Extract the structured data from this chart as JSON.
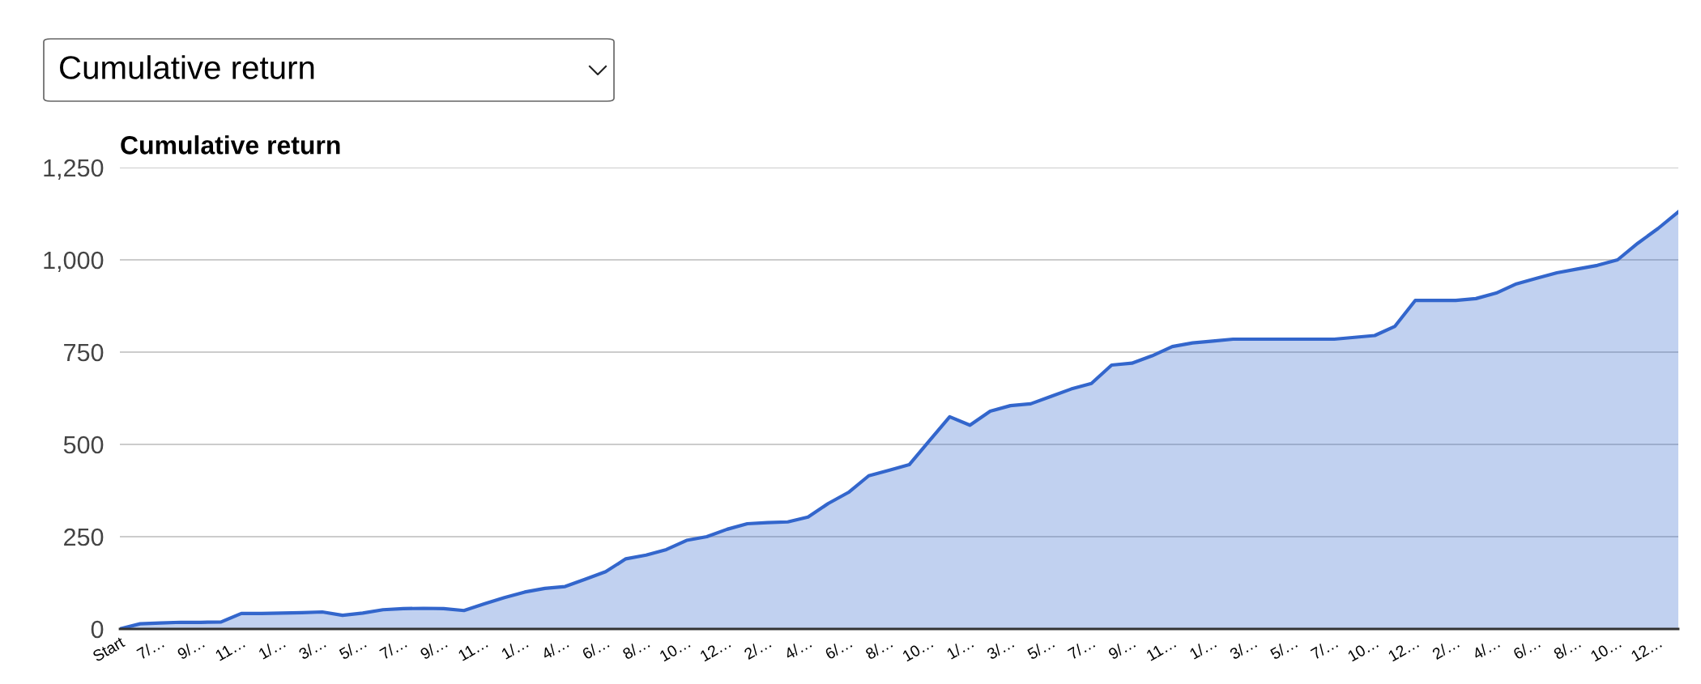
{
  "chart_data": {
    "type": "area",
    "title": "Cumulative return",
    "annotations": [
      "Cumulative return"
    ],
    "categories": [
      "Start",
      null,
      "7/…",
      null,
      "9/…",
      null,
      "11…",
      null,
      "1/…",
      null,
      "3/…",
      null,
      "5/…",
      null,
      "7/…",
      null,
      "9/…",
      null,
      "11…",
      null,
      "1/…",
      null,
      "4/…",
      null,
      "6/…",
      null,
      "8/…",
      null,
      "10…",
      null,
      "12…",
      null,
      "2/…",
      null,
      "4/…",
      null,
      "6/…",
      null,
      "8/…",
      null,
      "10…",
      null,
      "1/…",
      null,
      "3/…",
      null,
      "5/…",
      null,
      "7/…",
      null,
      "9/…",
      null,
      "11…",
      null,
      "1/…",
      null,
      "3/…",
      null,
      "5/…",
      null,
      "7/…",
      null,
      "10…",
      null,
      "12…",
      null,
      "2/…",
      null,
      "4/…",
      null,
      "6/…",
      null,
      "8/…",
      null,
      "10…",
      null,
      "12…",
      null
    ],
    "series": [
      {
        "color": "#3366cc",
        "values": [
          0,
          14,
          16,
          18,
          18,
          19,
          42,
          42,
          43,
          44,
          46,
          37,
          43,
          52,
          55,
          56,
          55,
          50,
          68,
          85,
          100,
          110,
          115,
          135,
          155,
          190,
          200,
          215,
          240,
          250,
          270,
          285,
          288,
          290,
          303,
          340,
          370,
          415,
          430,
          445,
          510,
          575,
          552,
          590,
          605,
          610,
          630,
          650,
          665,
          715,
          720,
          740,
          765,
          775,
          780,
          785,
          785,
          785,
          785,
          785,
          785,
          790,
          795,
          820,
          890,
          890,
          890,
          895,
          910,
          935,
          950,
          965,
          975,
          985,
          1000,
          1045,
          1085,
          1130
        ]
      }
    ],
    "ylim": [
      0,
      1250
    ],
    "yticks": [
      0,
      250,
      500,
      750,
      {
        "value": 1000,
        "label": "1,000"
      },
      {
        "value": 1250,
        "label": "1,250"
      }
    ],
    "grid": "y",
    "legend": false
  }
}
